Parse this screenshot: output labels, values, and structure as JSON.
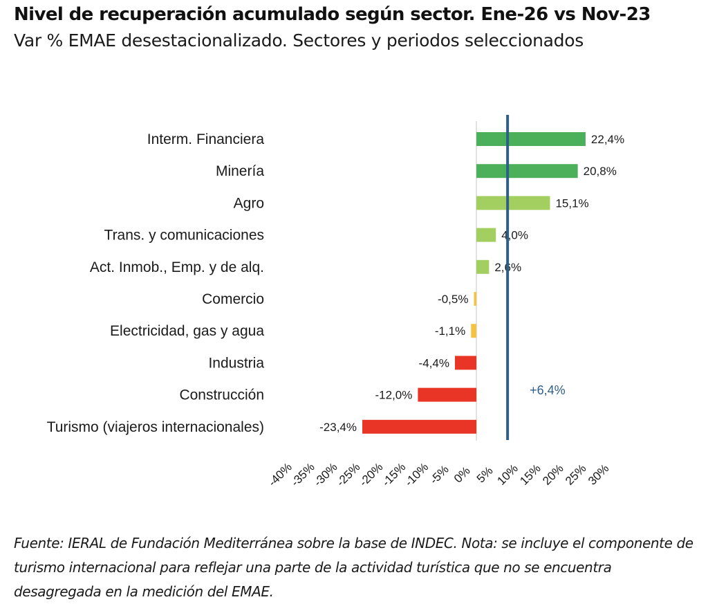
{
  "header": {
    "title": "Nivel de recuperación acumulado según sector. Ene-26 vs Nov-23",
    "subtitle": "Var % EMAE desestacionalizado. Sectores y periodos seleccionados"
  },
  "chart_data": {
    "type": "bar",
    "orientation": "horizontal",
    "title": "Nivel de recuperación acumulado según sector. Ene-26 vs Nov-23",
    "subtitle": "Var % EMAE desestacionalizado. Sectores y periodos seleccionados",
    "xlabel": "",
    "ylabel": "",
    "xlim": [
      -40,
      30
    ],
    "grid": false,
    "categories": [
      "Interm. Financiera",
      "Minería",
      "Agro",
      "Trans. y comunicaciones",
      "Act. Inmob., Emp. y de alq.",
      "Comercio",
      "Electricidad, gas y agua",
      "Industria",
      "Construcción",
      "Turismo (viajeros internacionales)"
    ],
    "values": [
      22.4,
      20.8,
      15.1,
      4.0,
      2.6,
      -0.5,
      -1.1,
      -4.4,
      -12.0,
      -23.4
    ],
    "value_labels": [
      "22,4%",
      "20,8%",
      "15,1%",
      "4,0%",
      "2,6%",
      "-0,5%",
      "-1,1%",
      "-4,4%",
      "-12,0%",
      "-23,4%"
    ],
    "colors": [
      "#4caf5a",
      "#4caf5a",
      "#a2cf5f",
      "#a2cf5f",
      "#a2cf5f",
      "#f5c242",
      "#f5c242",
      "#e83525",
      "#e83525",
      "#e83525"
    ],
    "x_ticks": [
      -40,
      -35,
      -30,
      -25,
      -20,
      -15,
      -10,
      -5,
      0,
      5,
      10,
      15,
      20,
      25,
      30
    ],
    "x_tick_labels": [
      "-40%",
      "-35%",
      "-30%",
      "-25%",
      "-20%",
      "-15%",
      "-10%",
      "-5%",
      "0%",
      "5%",
      "10%",
      "15%",
      "20%",
      "25%",
      "30%"
    ],
    "reference_line": {
      "value": 6.4,
      "label": "+6,4%",
      "color": "#2e5f86"
    }
  },
  "footer": {
    "note": "Fuente: IERAL de Fundación Mediterránea sobre la base de INDEC. Nota: se incluye el componente de turismo internacional para reflejar una parte de la actividad turística que no se encuentra desagregada en la medición del EMAE."
  }
}
